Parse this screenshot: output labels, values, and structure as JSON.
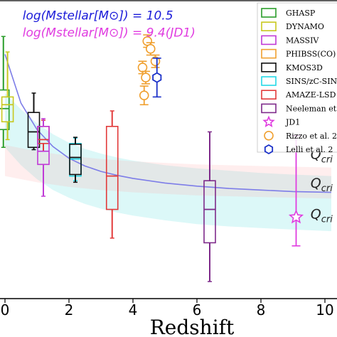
{
  "chart_data": {
    "type": "scatter",
    "title": "",
    "xlabel": "Redshift",
    "ylabel": "",
    "xlim": [
      0,
      10.2
    ],
    "ylim": [
      -0.6,
      3.25
    ],
    "x_ticks": [
      {
        "value": 0,
        "label": "0"
      },
      {
        "value": 2,
        "label": "2"
      },
      {
        "value": 4,
        "label": "4"
      },
      {
        "value": 6,
        "label": "6"
      },
      {
        "value": 8,
        "label": "8"
      },
      {
        "value": 10,
        "label": "10"
      }
    ],
    "annotations": [
      {
        "text": "log(Mstellar[M⊙]) = 10.5",
        "color": "#1a1ad9",
        "x": 0.55,
        "y": 3.0
      },
      {
        "text": "log(Mstellar[M⊙]) = 9.4(JD1)",
        "color": "#e03ce0",
        "x": 0.55,
        "y": 2.78
      },
      {
        "text": "Q",
        "sub": "cri",
        "color": "#222222",
        "x": 9.55,
        "y": 1.2
      },
      {
        "text": "Q",
        "sub": "cri",
        "color": "#222222",
        "x": 9.55,
        "y": 0.83
      },
      {
        "text": "Q",
        "sub": "cri",
        "color": "#222222",
        "x": 9.55,
        "y": 0.43
      }
    ],
    "bands": [
      {
        "name": "mstellar-10.5-band",
        "color": "#9beaea",
        "opacity": 0.35,
        "x": [
          0,
          0.5,
          1,
          1.5,
          2,
          2.5,
          3,
          3.5,
          4,
          5,
          6,
          7,
          8,
          9,
          10.2
        ],
        "upper": [
          2.05,
          1.84,
          1.66,
          1.52,
          1.41,
          1.33,
          1.27,
          1.22,
          1.18,
          1.12,
          1.08,
          1.05,
          1.02,
          1.0,
          0.98
        ],
        "lower": [
          1.35,
          1.12,
          0.94,
          0.8,
          0.7,
          0.62,
          0.56,
          0.51,
          0.47,
          0.41,
          0.36,
          0.33,
          0.31,
          0.29,
          0.27
        ]
      },
      {
        "name": "mstellar-9.4-band",
        "color": "#ffb3b3",
        "opacity": 0.22,
        "x": [
          0,
          1,
          2,
          3,
          4,
          5,
          6,
          7,
          8,
          9,
          10.2
        ],
        "upper": [
          1.38,
          1.3,
          1.24,
          1.2,
          1.17,
          1.15,
          1.13,
          1.12,
          1.11,
          1.1,
          1.09
        ],
        "lower": [
          0.98,
          0.9,
          0.84,
          0.8,
          0.77,
          0.75,
          0.73,
          0.72,
          0.71,
          0.7,
          0.69
        ]
      }
    ],
    "curves": [
      {
        "name": "mstellar-10.5-curve",
        "color": "#7d7de8",
        "x": [
          0,
          0.5,
          1,
          1.5,
          2,
          2.5,
          3,
          3.5,
          4,
          5,
          6,
          7,
          8,
          9,
          10.2
        ],
        "y": [
          2.55,
          1.92,
          1.58,
          1.36,
          1.21,
          1.11,
          1.04,
          0.99,
          0.95,
          0.89,
          0.85,
          0.82,
          0.8,
          0.78,
          0.77
        ]
      }
    ],
    "boxes": [
      {
        "name": "GHASP",
        "color": "#2a9d2a",
        "x": -0.05,
        "q1": 1.58,
        "median": 1.85,
        "q3": 2.09,
        "low": 1.35,
        "high": 2.78
      },
      {
        "name": "DYNAMO",
        "color": "#c8c81e",
        "x": 0.08,
        "q1": 1.68,
        "median": 1.9,
        "q3": 2.0,
        "low": 1.45,
        "high": 2.58
      },
      {
        "name": "KMOS3D",
        "color": "#111111",
        "x": 0.9,
        "q1": 1.35,
        "median": 1.55,
        "q3": 1.8,
        "low": 1.32,
        "high": 2.05
      },
      {
        "name": "AMAZE-LSD",
        "color": "#e23b3b",
        "x": 1.2,
        "q1": 1.4,
        "median": 1.45,
        "q3": 1.62,
        "low": 1.3,
        "high": 1.7
      },
      {
        "name": "MASSIV",
        "color": "#c03ad6",
        "x": 1.2,
        "q1": 1.13,
        "median": 1.3,
        "q3": 1.62,
        "low": 0.72,
        "high": 1.72
      },
      {
        "name": "SINS/zC-SINF",
        "color": "#24d8e6",
        "x": 2.2,
        "q1": 0.98,
        "median": 1.2,
        "q3": 1.4,
        "low": 0.92,
        "high": 1.47
      },
      {
        "name": "KMOS3D",
        "color": "#111111",
        "x": 2.2,
        "q1": 1.0,
        "median": 1.22,
        "q3": 1.39,
        "low": 0.9,
        "high": 1.48
      },
      {
        "name": "AMAZE-LSD",
        "color": "#e23b3b",
        "x": 3.35,
        "q1": 0.55,
        "median": 0.98,
        "q3": 1.62,
        "low": 0.18,
        "high": 1.82
      },
      {
        "name": "Neeleman et al.",
        "color": "#7e2a8a",
        "x": 6.4,
        "q1": 0.12,
        "median": 0.55,
        "q3": 0.92,
        "low": -0.38,
        "high": 1.55
      }
    ],
    "points": [
      {
        "name": "Rizzo et al.",
        "color": "#f0a030",
        "marker": "circle",
        "x": 4.45,
        "y": 2.72,
        "yerr": 0.08
      },
      {
        "name": "Rizzo et al.",
        "color": "#f0a030",
        "marker": "circle",
        "x": 4.55,
        "y": 2.62,
        "yerr": 0.08
      },
      {
        "name": "Rizzo et al.",
        "color": "#f0a030",
        "marker": "circle",
        "x": 4.7,
        "y": 2.46,
        "yerr": 0.08
      },
      {
        "name": "Rizzo et al.",
        "color": "#f0a030",
        "marker": "circle",
        "x": 4.3,
        "y": 2.38,
        "yerr": 0.08
      },
      {
        "name": "Rizzo et al.",
        "color": "#f0a030",
        "marker": "circle",
        "x": 4.4,
        "y": 2.25,
        "yerr": 0.08
      },
      {
        "name": "Rizzo et al.",
        "color": "#f0a030",
        "marker": "circle",
        "x": 4.35,
        "y": 2.02,
        "yerr": 0.12
      },
      {
        "name": "Lelli et al.",
        "color": "#1a30c8",
        "marker": "hexagon",
        "x": 4.75,
        "y": 2.25,
        "yerr": 0.25
      },
      {
        "name": "JD1",
        "color": "#e03ce0",
        "marker": "star",
        "x": 9.1,
        "y": 0.45,
        "ylow": 0.08,
        "yhigh": 1.5
      }
    ],
    "legend": {
      "placement": "top-right",
      "entries": [
        {
          "label": "GHASP",
          "color": "#2a9d2a",
          "marker": "box"
        },
        {
          "label": "DYNAMO",
          "color": "#c8c81e",
          "marker": "box"
        },
        {
          "label": "MASSIV",
          "color": "#c03ad6",
          "marker": "box"
        },
        {
          "label": "PHIBSS(CO)",
          "color": "#f0a030",
          "marker": "box"
        },
        {
          "label": "KMOS3D",
          "color": "#111111",
          "marker": "box"
        },
        {
          "label": "SINS/zC-SINF",
          "color": "#24d8e6",
          "marker": "box"
        },
        {
          "label": "AMAZE-LSD",
          "color": "#e23b3b",
          "marker": "box"
        },
        {
          "label": "Neeleman et al.",
          "color": "#7e2a8a",
          "marker": "box"
        },
        {
          "label": "JD1",
          "color": "#e03ce0",
          "marker": "star"
        },
        {
          "label": "Rizzo et al. 2",
          "color": "#f0a030",
          "marker": "circle"
        },
        {
          "label": "Lelli et al. 2",
          "color": "#1a30c8",
          "marker": "hexagon"
        }
      ]
    }
  }
}
